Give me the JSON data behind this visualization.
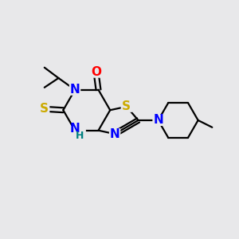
{
  "background_color": "#e8e8ea",
  "bond_color": "#000000",
  "atom_colors": {
    "N": "#0000ff",
    "O": "#ff0000",
    "S": "#ccaa00",
    "H": "#008080"
  },
  "font_size": 11,
  "font_size_h": 9,
  "lw": 1.6
}
